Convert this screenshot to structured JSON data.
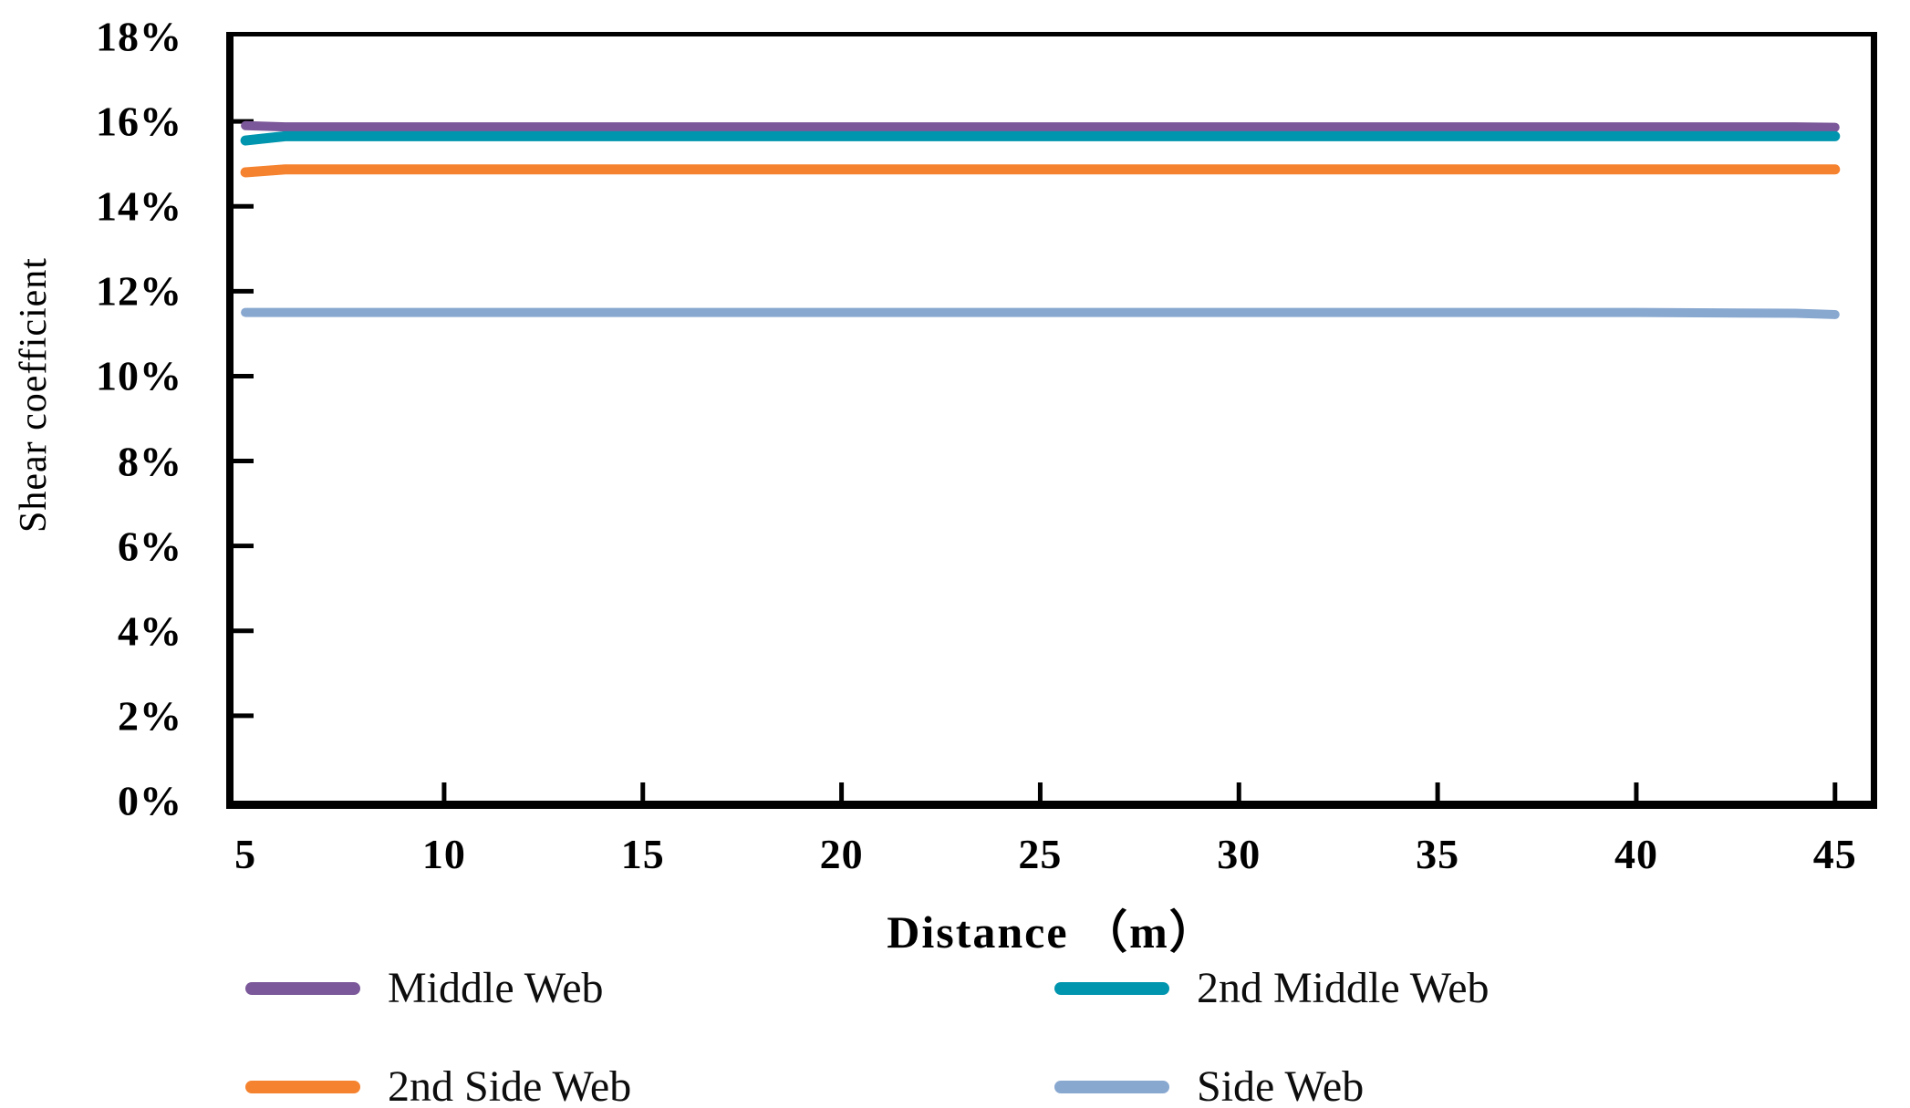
{
  "chart_data": {
    "type": "line",
    "title": "",
    "xlabel": "Distance （m）",
    "ylabel": "Shear coefficient",
    "x": [
      5,
      6,
      10,
      15,
      20,
      25,
      30,
      35,
      40,
      44,
      45
    ],
    "series": [
      {
        "name": "Middle Web",
        "color": "#7B5899",
        "stroke_width": 10,
        "values": [
          15.9,
          15.87,
          15.87,
          15.87,
          15.87,
          15.87,
          15.87,
          15.87,
          15.87,
          15.87,
          15.86
        ]
      },
      {
        "name": "2nd Middle Web",
        "color": "#0095AE",
        "stroke_width": 11,
        "values": [
          15.55,
          15.65,
          15.65,
          15.65,
          15.65,
          15.65,
          15.65,
          15.65,
          15.65,
          15.65,
          15.65
        ]
      },
      {
        "name": "2nd Side Web",
        "color": "#F5822E",
        "stroke_width": 11,
        "values": [
          14.8,
          14.87,
          14.87,
          14.87,
          14.87,
          14.87,
          14.87,
          14.87,
          14.87,
          14.87,
          14.87
        ]
      },
      {
        "name": "Side Web",
        "color": "#88A8D0",
        "stroke_width": 10,
        "values": [
          11.5,
          11.5,
          11.5,
          11.5,
          11.5,
          11.5,
          11.5,
          11.5,
          11.5,
          11.48,
          11.45
        ]
      }
    ],
    "xlim": [
      4.7,
      45.9
    ],
    "ylim": [
      0,
      18
    ],
    "x_tick_values": [
      5,
      10,
      15,
      20,
      25,
      30,
      35,
      40,
      45
    ],
    "x_tick_labels": [
      "5",
      "10",
      "15",
      "20",
      "25",
      "30",
      "35",
      "40",
      "45"
    ],
    "y_tick_values": [
      0,
      2,
      4,
      6,
      8,
      10,
      12,
      14,
      16,
      18
    ],
    "y_tick_labels": [
      "0%",
      "2%",
      "4%",
      "6%",
      "8%",
      "10%",
      "12%",
      "14%",
      "16%",
      "18%"
    ],
    "grid": false,
    "legend_position": "below",
    "axis_color": "#000000",
    "tick_style": "inside"
  }
}
